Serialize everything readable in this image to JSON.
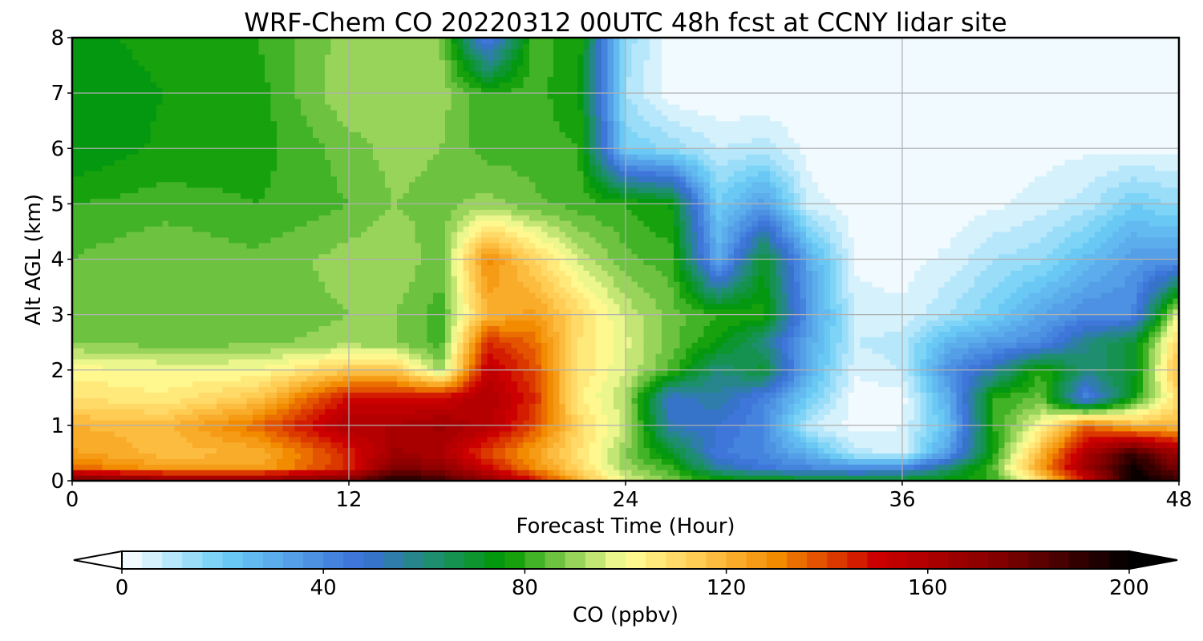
{
  "chart_data": {
    "type": "heatmap",
    "title": "WRF-Chem CO  20220312 00UTC 48h fcst at CCNY lidar site",
    "xlabel": "Forecast Time (Hour)",
    "ylabel": "Alt AGL (km)",
    "xlim": [
      0,
      48
    ],
    "ylim": [
      0,
      8
    ],
    "xticks": [
      "0",
      "12",
      "24",
      "36",
      "48"
    ],
    "yticks": [
      "0",
      "1",
      "2",
      "3",
      "4",
      "5",
      "6",
      "7",
      "8"
    ],
    "grid": true,
    "x": [
      0,
      4,
      8,
      12,
      14,
      16,
      18,
      20,
      22,
      24,
      26,
      28,
      30,
      32,
      34,
      36,
      38,
      40,
      42,
      44,
      46,
      48
    ],
    "y": [
      0,
      0.25,
      0.5,
      1,
      1.5,
      2,
      2.5,
      3,
      4,
      5,
      6,
      7,
      8
    ],
    "z": [
      [
        180,
        172,
        170,
        178,
        196,
        188,
        170,
        150,
        120,
        98,
        88,
        78,
        76,
        74,
        72,
        74,
        76,
        80,
        110,
        150,
        200,
        190
      ],
      [
        135,
        125,
        124,
        145,
        175,
        170,
        150,
        130,
        110,
        90,
        80,
        55,
        45,
        40,
        38,
        40,
        60,
        85,
        125,
        165,
        198,
        175
      ],
      [
        125,
        118,
        120,
        145,
        165,
        160,
        140,
        125,
        108,
        88,
        72,
        45,
        40,
        28,
        10,
        6,
        35,
        78,
        120,
        160,
        190,
        165
      ],
      [
        120,
        118,
        135,
        160,
        160,
        165,
        158,
        140,
        110,
        95,
        52,
        48,
        40,
        8,
        2,
        4,
        25,
        80,
        100,
        135,
        120,
        118
      ],
      [
        108,
        105,
        115,
        150,
        150,
        150,
        160,
        145,
        105,
        92,
        48,
        55,
        42,
        20,
        1,
        2,
        30,
        80,
        85,
        40,
        75,
        110
      ],
      [
        102,
        100,
        100,
        115,
        115,
        90,
        155,
        140,
        108,
        96,
        82,
        60,
        70,
        28,
        5,
        8,
        38,
        55,
        80,
        60,
        70,
        120
      ],
      [
        88,
        86,
        87,
        90,
        88,
        82,
        145,
        135,
        108,
        97,
        86,
        75,
        60,
        30,
        8,
        10,
        28,
        35,
        40,
        60,
        70,
        112
      ],
      [
        86,
        87,
        85,
        88,
        88,
        82,
        120,
        126,
        110,
        95,
        86,
        80,
        78,
        35,
        6,
        5,
        12,
        20,
        32,
        40,
        40,
        100
      ],
      [
        84,
        88,
        85,
        90,
        92,
        85,
        130,
        112,
        95,
        85,
        82,
        30,
        72,
        30,
        3,
        2,
        5,
        12,
        15,
        25,
        35,
        35
      ],
      [
        80,
        82,
        80,
        84,
        88,
        86,
        90,
        85,
        82,
        80,
        75,
        20,
        35,
        6,
        1,
        1,
        1,
        3,
        6,
        10,
        20,
        15
      ],
      [
        72,
        77,
        78,
        86,
        90,
        88,
        82,
        82,
        80,
        20,
        15,
        8,
        10,
        2,
        0,
        0,
        0,
        1,
        2,
        3,
        3,
        3
      ],
      [
        72,
        76,
        78,
        92,
        88,
        90,
        80,
        82,
        76,
        12,
        1,
        0,
        0,
        0,
        0,
        0,
        0,
        0,
        0,
        0,
        0,
        0
      ],
      [
        74,
        78,
        80,
        90,
        92,
        88,
        40,
        82,
        78,
        15,
        1,
        0,
        0,
        0,
        0,
        0,
        0,
        0,
        0,
        0,
        0,
        0
      ]
    ],
    "colorbar": {
      "label": "CO  (ppbv)",
      "min": 0,
      "max": 200,
      "ticks": [
        "0",
        "40",
        "80",
        "120",
        "160",
        "200"
      ],
      "extend": "both",
      "stops": [
        {
          "v": 0,
          "c": "#ffffff"
        },
        {
          "v": 20,
          "c": "#6ecff6"
        },
        {
          "v": 48,
          "c": "#3a6fd8"
        },
        {
          "v": 62,
          "c": "#1e8f6e"
        },
        {
          "v": 76,
          "c": "#009900"
        },
        {
          "v": 90,
          "c": "#99d45a"
        },
        {
          "v": 100,
          "c": "#ffff99"
        },
        {
          "v": 115,
          "c": "#ffc84f"
        },
        {
          "v": 130,
          "c": "#f28b00"
        },
        {
          "v": 150,
          "c": "#cc0000"
        },
        {
          "v": 175,
          "c": "#800000"
        },
        {
          "v": 200,
          "c": "#000000"
        }
      ]
    }
  }
}
